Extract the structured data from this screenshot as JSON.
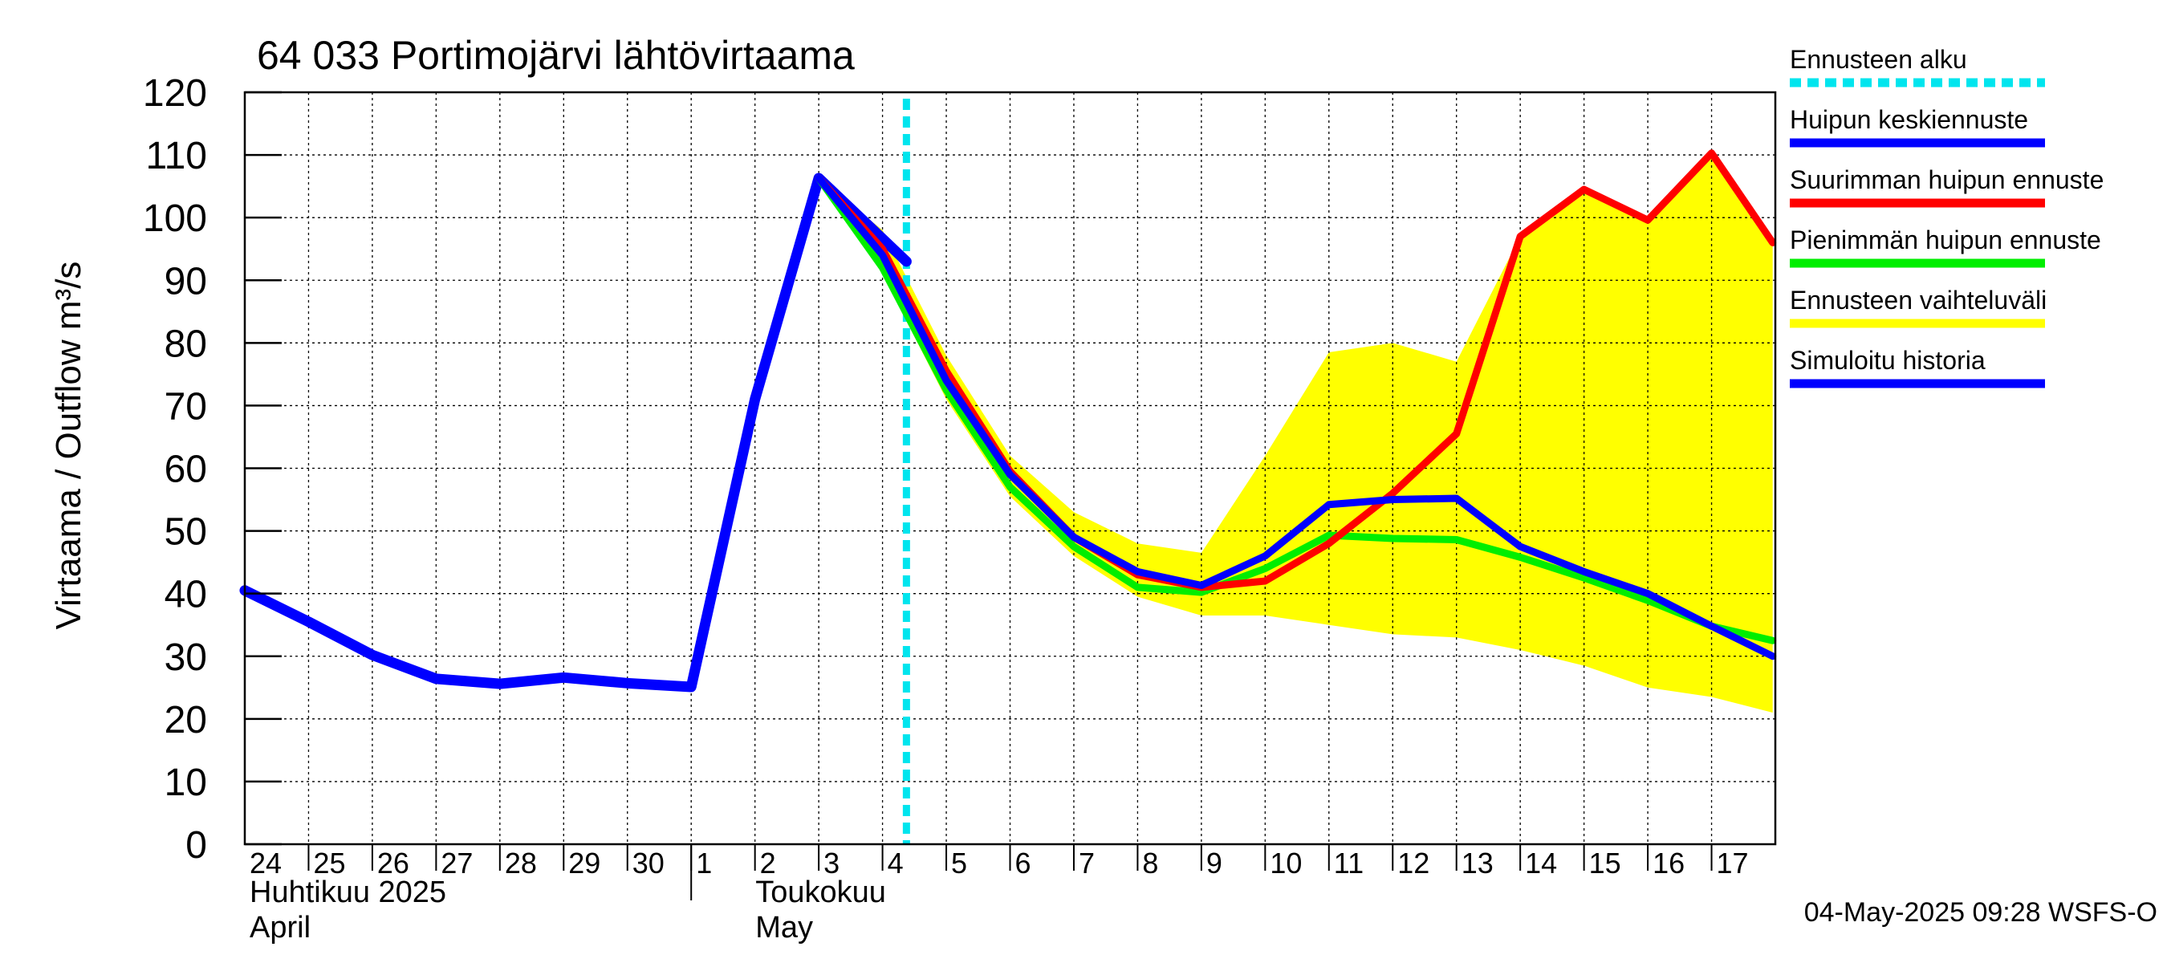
{
  "chart_data": {
    "type": "line",
    "title": "64 033 Portimojärvi lähtövirtaama",
    "ylabel": "Virtaama / Outflow    m³/s",
    "ylim": [
      0,
      120
    ],
    "yticks": [
      0,
      10,
      20,
      30,
      40,
      50,
      60,
      70,
      80,
      90,
      100,
      110,
      120
    ],
    "x_start": "2025-04-24",
    "x_end": "2025-05-18",
    "forecast_start": "2025-05-04T09:00",
    "x_day_labels": [
      "24",
      "25",
      "26",
      "27",
      "28",
      "29",
      "30",
      "1",
      "2",
      "3",
      "4",
      "5",
      "6",
      "7",
      "8",
      "9",
      "10",
      "11",
      "12",
      "13",
      "14",
      "15",
      "16",
      "17"
    ],
    "months": [
      {
        "fi": "Huhtikuu  2025",
        "en": "April",
        "start": "2025-04-24"
      },
      {
        "fi": "Toukokuu",
        "en": "May",
        "start": "2025-05-01"
      }
    ],
    "legend": {
      "placement": "right",
      "entries": [
        {
          "label": "Ennusteen alku",
          "color": "#00e5ee",
          "style": "dashed"
        },
        {
          "label": "Huipun keskiennuste",
          "color": "#0000ff",
          "style": "solid"
        },
        {
          "label": "Suurimman huipun ennuste",
          "color": "#ff0000",
          "style": "solid"
        },
        {
          "label": "Pienimmän huipun ennuste",
          "color": "#00ee00",
          "style": "solid"
        },
        {
          "label": "Ennusteen vaihteluväli",
          "color": "#ffff00",
          "style": "solid"
        },
        {
          "label": "Simuloitu historia",
          "color": "#0000ff",
          "style": "solid"
        }
      ]
    },
    "series": [
      {
        "name": "Simuloitu historia",
        "color": "#0000ff",
        "points": [
          [
            "2025-04-24T00:00",
            40.5
          ],
          [
            "2025-04-25T00:00",
            35.5
          ],
          [
            "2025-04-26T00:00",
            30.2
          ],
          [
            "2025-04-27T00:00",
            26.4
          ],
          [
            "2025-04-28T00:00",
            25.6
          ],
          [
            "2025-04-29T00:00",
            26.6
          ],
          [
            "2025-04-30T00:00",
            25.7
          ],
          [
            "2025-05-01T00:00",
            25.1
          ],
          [
            "2025-05-02T00:00",
            71
          ],
          [
            "2025-05-03T00:00",
            106.3
          ],
          [
            "2025-05-04T09:00",
            93
          ]
        ]
      },
      {
        "name": "Ennusteen vaihteluväli",
        "color": "#ffff00",
        "upper": [
          [
            "2025-05-03T00:00",
            106.3
          ],
          [
            "2025-05-04T00:00",
            98
          ],
          [
            "2025-05-05T00:00",
            78
          ],
          [
            "2025-05-06T00:00",
            62
          ],
          [
            "2025-05-07T00:00",
            53
          ],
          [
            "2025-05-08T00:00",
            48
          ],
          [
            "2025-05-09T00:00",
            46.5
          ],
          [
            "2025-05-10T00:00",
            62
          ],
          [
            "2025-05-11T00:00",
            78.5
          ],
          [
            "2025-05-12T00:00",
            80
          ],
          [
            "2025-05-13T00:00",
            77
          ],
          [
            "2025-05-14T00:00",
            97
          ],
          [
            "2025-05-15T00:00",
            104.5
          ],
          [
            "2025-05-16T00:00",
            100
          ],
          [
            "2025-05-17T00:00",
            110.3
          ],
          [
            "2025-05-17T23:00",
            96
          ]
        ],
        "lower": [
          [
            "2025-05-03T00:00",
            106.3
          ],
          [
            "2025-05-04T00:00",
            91
          ],
          [
            "2025-05-05T00:00",
            71
          ],
          [
            "2025-05-06T00:00",
            55.5
          ],
          [
            "2025-05-07T00:00",
            46
          ],
          [
            "2025-05-08T00:00",
            39.5
          ],
          [
            "2025-05-09T00:00",
            36.5
          ],
          [
            "2025-05-10T00:00",
            36.5
          ],
          [
            "2025-05-11T00:00",
            35
          ],
          [
            "2025-05-12T00:00",
            33.5
          ],
          [
            "2025-05-13T00:00",
            33
          ],
          [
            "2025-05-14T00:00",
            31
          ],
          [
            "2025-05-15T00:00",
            28.5
          ],
          [
            "2025-05-16T00:00",
            25
          ],
          [
            "2025-05-17T00:00",
            23.5
          ],
          [
            "2025-05-17T23:00",
            21
          ]
        ]
      },
      {
        "name": "Pienimmän huipun ennuste",
        "color": "#00ee00",
        "points": [
          [
            "2025-05-03T00:00",
            106.3
          ],
          [
            "2025-05-04T00:00",
            92
          ],
          [
            "2025-05-05T00:00",
            72.5
          ],
          [
            "2025-05-06T00:00",
            57
          ],
          [
            "2025-05-07T00:00",
            47.5
          ],
          [
            "2025-05-08T00:00",
            41
          ],
          [
            "2025-05-09T00:00",
            40.2
          ],
          [
            "2025-05-10T00:00",
            44
          ],
          [
            "2025-05-11T00:00",
            49.3
          ],
          [
            "2025-05-12T00:00",
            48.8
          ],
          [
            "2025-05-13T00:00",
            48.6
          ],
          [
            "2025-05-14T00:00",
            45.8
          ],
          [
            "2025-05-15T00:00",
            42.5
          ],
          [
            "2025-05-16T00:00",
            38.9
          ],
          [
            "2025-05-17T00:00",
            34.8
          ],
          [
            "2025-05-17T23:00",
            32.5
          ]
        ]
      },
      {
        "name": "Suurimman huipun ennuste",
        "color": "#ff0000",
        "points": [
          [
            "2025-05-03T00:00",
            106.3
          ],
          [
            "2025-05-04T00:00",
            95
          ],
          [
            "2025-05-05T00:00",
            75.5
          ],
          [
            "2025-05-06T00:00",
            59.5
          ],
          [
            "2025-05-07T00:00",
            49
          ],
          [
            "2025-05-08T00:00",
            43
          ],
          [
            "2025-05-09T00:00",
            41
          ],
          [
            "2025-05-10T00:00",
            42
          ],
          [
            "2025-05-11T00:00",
            48
          ],
          [
            "2025-05-12T00:00",
            56
          ],
          [
            "2025-05-13T00:00",
            65.5
          ],
          [
            "2025-05-14T00:00",
            97
          ],
          [
            "2025-05-15T00:00",
            104.5
          ],
          [
            "2025-05-16T00:00",
            99.6
          ],
          [
            "2025-05-17T00:00",
            110.3
          ],
          [
            "2025-05-17T23:00",
            96
          ]
        ]
      },
      {
        "name": "Huipun keskiennuste",
        "color": "#0000ff",
        "points": [
          [
            "2025-05-03T00:00",
            106.3
          ],
          [
            "2025-05-04T00:00",
            94
          ],
          [
            "2025-05-05T00:00",
            74
          ],
          [
            "2025-05-06T00:00",
            59
          ],
          [
            "2025-05-07T00:00",
            49
          ],
          [
            "2025-05-08T00:00",
            43.5
          ],
          [
            "2025-05-09T00:00",
            41.3
          ],
          [
            "2025-05-10T00:00",
            46
          ],
          [
            "2025-05-11T00:00",
            54.2
          ],
          [
            "2025-05-12T00:00",
            55
          ],
          [
            "2025-05-13T00:00",
            55.2
          ],
          [
            "2025-05-14T00:00",
            47.5
          ],
          [
            "2025-05-15T00:00",
            43.5
          ],
          [
            "2025-05-16T00:00",
            40
          ],
          [
            "2025-05-17T00:00",
            34.8
          ],
          [
            "2025-05-17T23:00",
            30
          ]
        ]
      }
    ]
  },
  "footer": {
    "timestamp": "04-May-2025 09:28 WSFS-O"
  }
}
